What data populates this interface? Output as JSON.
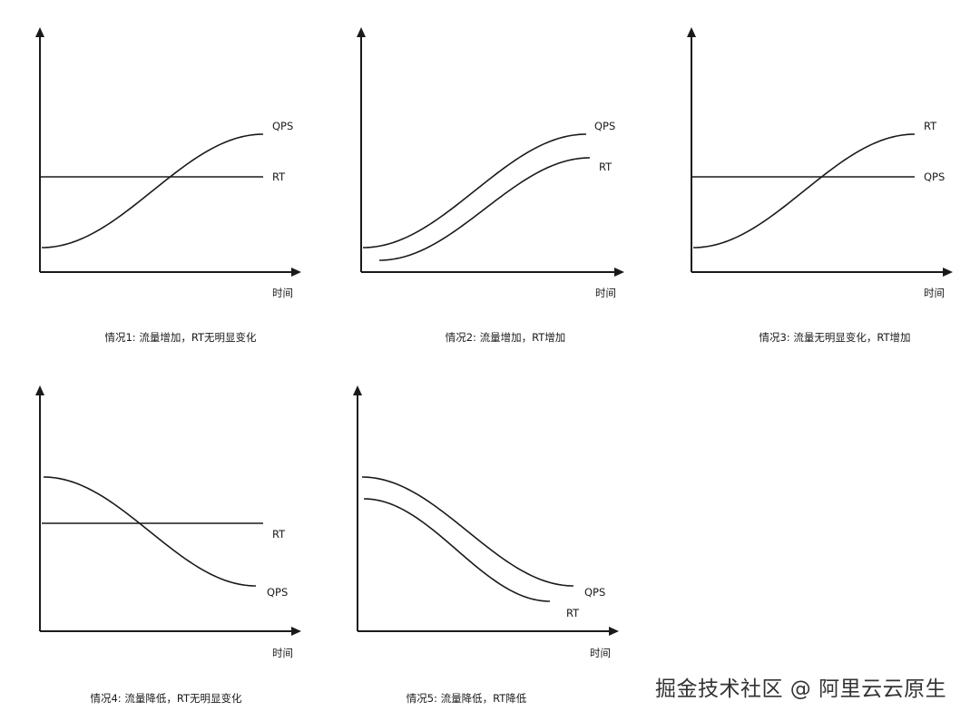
{
  "diagrams": [
    {
      "caption": "情况1: 流量增加，RT无明显变化",
      "x_label": "时间",
      "series": [
        {
          "label": "QPS",
          "trend": "increase"
        },
        {
          "label": "RT",
          "trend": "flat"
        }
      ]
    },
    {
      "caption": "情况2: 流量增加，RT增加",
      "x_label": "时间",
      "series": [
        {
          "label": "QPS",
          "trend": "increase"
        },
        {
          "label": "RT",
          "trend": "increase"
        }
      ]
    },
    {
      "caption": "情况3: 流量无明显变化，RT增加",
      "x_label": "时间",
      "series": [
        {
          "label": "RT",
          "trend": "increase"
        },
        {
          "label": "QPS",
          "trend": "flat"
        }
      ]
    },
    {
      "caption": "情况4: 流量降低，RT无明显变化",
      "x_label": "时间",
      "series": [
        {
          "label": "RT",
          "trend": "flat"
        },
        {
          "label": "QPS",
          "trend": "decrease"
        }
      ]
    },
    {
      "caption": "情况5: 流量降低，RT降低",
      "x_label": "时间",
      "series": [
        {
          "label": "QPS",
          "trend": "decrease"
        },
        {
          "label": "RT",
          "trend": "decrease"
        }
      ]
    }
  ],
  "watermark": "掘金技术社区 @ 阿里云云原生"
}
